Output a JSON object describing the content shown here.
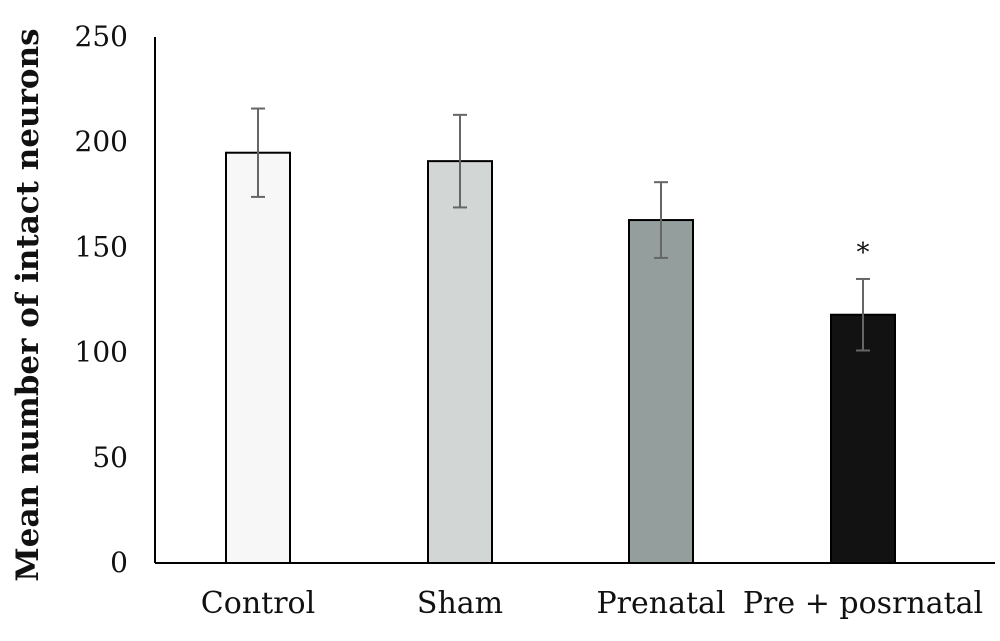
{
  "chart_data": {
    "type": "bar",
    "title": "",
    "xlabel": "",
    "ylabel": "Mean number of intact neurons",
    "ylim": [
      0,
      250
    ],
    "yticks": [
      0,
      50,
      100,
      150,
      200,
      250
    ],
    "ytick_labels": [
      "0",
      "50",
      "100",
      "150",
      "200",
      "250"
    ],
    "grid": false,
    "legend": "none",
    "categories": [
      "Control",
      "Sham",
      "Prenatal",
      "Pre + posrnatal"
    ],
    "values": [
      195,
      191,
      163,
      118
    ],
    "error": [
      21,
      22,
      18,
      17
    ],
    "annotations": [
      "",
      "",
      "",
      "*"
    ],
    "bar_colors": [
      "#f7f7f7",
      "#d2d6d5",
      "#949e9d",
      "#121212"
    ],
    "bar_edge_color": "#000000",
    "error_bar_color": "#666666"
  }
}
